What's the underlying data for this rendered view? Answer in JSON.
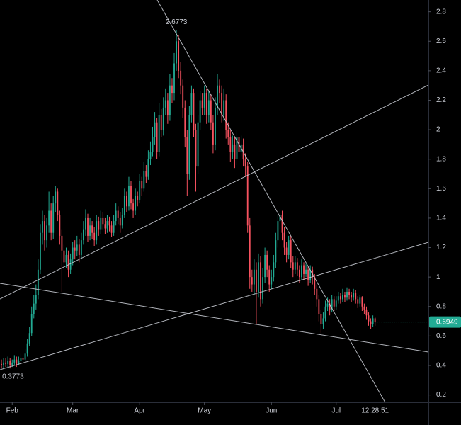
{
  "chart_data": {
    "type": "candlestick",
    "up_color": "#22ab94",
    "down_color": "#f7525f",
    "last_price_color": "#22ab94",
    "xlim": [
      -0.66,
      197.7
    ],
    "ylim": [
      0.15,
      2.88
    ],
    "yticks": [
      0.2,
      0.4,
      0.6,
      0.8,
      1,
      1.2,
      1.4,
      1.6,
      1.8,
      2,
      2.2,
      2.4,
      2.6,
      2.8
    ],
    "xticks": [
      {
        "value": 5,
        "label": "Feb"
      },
      {
        "value": 33,
        "label": "Mar"
      },
      {
        "value": 64,
        "label": "Apr"
      },
      {
        "value": 94,
        "label": "May"
      },
      {
        "value": 125,
        "label": "Jun"
      },
      {
        "value": 155,
        "label": "Jul"
      }
    ],
    "countdown": "12:28:51",
    "open": [
      0.41,
      0.4,
      0.42,
      0.41,
      0.43,
      0.4,
      0.42,
      0.44,
      0.41,
      0.43,
      0.45,
      0.44,
      0.48,
      0.55,
      0.62,
      0.75,
      0.82,
      0.88,
      1.05,
      1.3,
      1.38,
      1.25,
      1.35,
      1.45,
      1.3,
      1.5,
      1.58,
      1.42,
      1.28,
      1.18,
      1.1,
      1.15,
      1.05,
      1.12,
      1.2,
      1.18,
      1.22,
      1.15,
      1.25,
      1.32,
      1.4,
      1.28,
      1.35,
      1.3,
      1.25,
      1.38,
      1.32,
      1.4,
      1.36,
      1.33,
      1.38,
      1.35,
      1.3,
      1.38,
      1.45,
      1.4,
      1.35,
      1.42,
      1.55,
      1.48,
      1.62,
      1.5,
      1.45,
      1.55,
      1.52,
      1.65,
      1.6,
      1.72,
      1.68,
      1.8,
      1.85,
      1.95,
      2.05,
      1.85,
      2.1,
      2.0,
      2.15,
      2.2,
      2.1,
      2.3,
      2.25,
      2.45,
      2.6,
      2.4,
      2.3,
      2.15,
      1.95,
      1.7,
      2.1,
      2.25,
      2.0,
      1.75,
      2.05,
      2.2,
      2.15,
      2.25,
      2.1,
      2.2,
      2.05,
      1.9,
      2.15,
      2.3,
      2.25,
      2.1,
      2.2,
      2.0,
      1.95,
      1.85,
      1.9,
      1.8,
      1.95,
      1.85,
      1.9,
      1.8,
      1.75,
      1.35,
      1.0,
      0.95,
      1.05,
      0.9,
      1.1,
      0.85,
      1.0,
      1.15,
      1.05,
      0.95,
      1.0,
      1.1,
      1.25,
      1.38,
      1.42,
      1.3,
      1.2,
      1.15,
      1.25,
      1.1,
      1.05,
      1.1,
      1.05,
      1.0,
      1.08,
      1.02,
      1.05,
      0.98,
      1.05,
      1.0,
      0.92,
      0.85,
      0.75,
      0.68,
      0.72,
      0.8,
      0.82,
      0.78,
      0.85,
      0.8,
      0.84,
      0.87,
      0.85,
      0.88,
      0.86,
      0.9,
      0.88,
      0.86,
      0.89,
      0.85,
      0.82,
      0.86,
      0.8,
      0.78,
      0.74,
      0.7,
      0.68,
      0.72
    ],
    "high": [
      0.44,
      0.45,
      0.45,
      0.46,
      0.45,
      0.44,
      0.47,
      0.46,
      0.46,
      0.48,
      0.47,
      0.51,
      0.58,
      0.66,
      0.8,
      0.88,
      0.95,
      1.12,
      1.36,
      1.45,
      1.42,
      1.4,
      1.58,
      1.5,
      1.55,
      1.62,
      1.6,
      1.45,
      1.32,
      1.22,
      1.2,
      1.18,
      1.16,
      1.24,
      1.25,
      1.28,
      1.26,
      1.3,
      1.38,
      1.46,
      1.43,
      1.4,
      1.38,
      1.34,
      1.42,
      1.41,
      1.45,
      1.44,
      1.4,
      1.42,
      1.41,
      1.38,
      1.42,
      1.5,
      1.48,
      1.44,
      1.47,
      1.6,
      1.58,
      1.68,
      1.65,
      1.53,
      1.6,
      1.58,
      1.7,
      1.68,
      1.78,
      1.76,
      1.86,
      1.92,
      2.02,
      2.12,
      2.08,
      2.18,
      2.14,
      2.22,
      2.28,
      2.25,
      2.38,
      2.35,
      2.52,
      2.6773,
      2.64,
      2.46,
      2.34,
      2.2,
      2.0,
      2.16,
      2.3,
      2.28,
      2.04,
      2.1,
      2.26,
      2.25,
      2.3,
      2.28,
      2.26,
      2.24,
      2.1,
      2.22,
      2.38,
      2.34,
      2.3,
      2.28,
      2.24,
      2.05,
      2.0,
      1.96,
      1.95,
      2.0,
      1.98,
      1.96,
      1.94,
      1.84,
      1.78,
      1.4,
      1.05,
      1.12,
      1.1,
      1.16,
      1.14,
      1.06,
      1.2,
      1.18,
      1.08,
      1.05,
      1.15,
      1.3,
      1.42,
      1.46,
      1.45,
      1.34,
      1.24,
      1.28,
      1.28,
      1.14,
      1.14,
      1.13,
      1.08,
      1.12,
      1.1,
      1.09,
      1.07,
      1.08,
      1.07,
      1.02,
      0.95,
      0.88,
      0.78,
      0.76,
      0.84,
      0.86,
      0.85,
      0.88,
      0.87,
      0.87,
      0.9,
      0.89,
      0.92,
      0.9,
      0.93,
      0.92,
      0.9,
      0.92,
      0.91,
      0.87,
      0.88,
      0.87,
      0.82,
      0.8,
      0.76,
      0.72,
      0.74,
      0.73
    ],
    "low": [
      0.38,
      0.3773,
      0.39,
      0.39,
      0.38,
      0.39,
      0.4,
      0.39,
      0.4,
      0.42,
      0.41,
      0.43,
      0.46,
      0.53,
      0.6,
      0.72,
      0.78,
      0.85,
      1.02,
      1.22,
      1.18,
      1.2,
      1.3,
      1.25,
      1.26,
      1.44,
      1.38,
      1.22,
      0.9,
      1.05,
      1.06,
      1.0,
      1.02,
      1.08,
      1.12,
      1.14,
      1.1,
      1.12,
      1.22,
      1.28,
      1.24,
      1.25,
      1.26,
      1.21,
      1.22,
      1.28,
      1.29,
      1.32,
      1.29,
      1.3,
      1.31,
      1.27,
      1.28,
      1.35,
      1.36,
      1.3,
      1.33,
      1.4,
      1.44,
      1.45,
      1.46,
      1.4,
      1.42,
      1.48,
      1.5,
      1.55,
      1.58,
      1.64,
      1.66,
      1.76,
      1.82,
      1.9,
      1.8,
      1.82,
      1.95,
      1.96,
      2.1,
      2.04,
      2.06,
      2.18,
      2.2,
      2.4,
      2.35,
      2.24,
      2.08,
      1.88,
      1.55,
      1.66,
      2.05,
      1.95,
      1.58,
      1.7,
      2.0,
      2.1,
      2.1,
      2.04,
      2.05,
      2.0,
      1.84,
      1.86,
      2.1,
      2.18,
      2.05,
      2.06,
      1.94,
      1.9,
      1.78,
      1.8,
      1.74,
      1.76,
      1.8,
      1.82,
      1.75,
      1.68,
      1.3,
      0.92,
      0.9,
      0.88,
      0.68,
      0.86,
      0.8,
      0.82,
      0.96,
      1.0,
      0.9,
      0.92,
      0.97,
      1.06,
      1.2,
      1.32,
      1.25,
      1.15,
      1.1,
      1.12,
      1.06,
      1.0,
      1.02,
      1.01,
      0.96,
      0.98,
      0.98,
      1.0,
      0.94,
      0.96,
      0.95,
      0.88,
      0.8,
      0.7,
      0.62,
      0.65,
      0.7,
      0.77,
      0.74,
      0.76,
      0.77,
      0.78,
      0.82,
      0.82,
      0.83,
      0.83,
      0.84,
      0.85,
      0.83,
      0.84,
      0.82,
      0.79,
      0.8,
      0.77,
      0.75,
      0.71,
      0.67,
      0.65,
      0.66,
      0.67
    ],
    "close": [
      0.4,
      0.42,
      0.41,
      0.43,
      0.4,
      0.42,
      0.44,
      0.41,
      0.43,
      0.45,
      0.44,
      0.48,
      0.55,
      0.62,
      0.75,
      0.82,
      0.88,
      1.05,
      1.3,
      1.38,
      1.25,
      1.35,
      1.45,
      1.3,
      1.5,
      1.58,
      1.42,
      1.28,
      1.18,
      1.1,
      1.15,
      1.05,
      1.12,
      1.2,
      1.18,
      1.22,
      1.15,
      1.25,
      1.32,
      1.4,
      1.28,
      1.35,
      1.3,
      1.25,
      1.38,
      1.32,
      1.4,
      1.36,
      1.33,
      1.38,
      1.35,
      1.3,
      1.38,
      1.45,
      1.4,
      1.35,
      1.42,
      1.55,
      1.48,
      1.62,
      1.5,
      1.45,
      1.55,
      1.52,
      1.65,
      1.6,
      1.72,
      1.68,
      1.8,
      1.85,
      1.95,
      2.05,
      1.85,
      2.1,
      2.0,
      2.15,
      2.2,
      2.1,
      2.3,
      2.25,
      2.45,
      2.6,
      2.4,
      2.3,
      2.15,
      1.95,
      1.7,
      2.1,
      2.25,
      2.0,
      1.75,
      2.05,
      2.2,
      2.15,
      2.25,
      2.1,
      2.2,
      2.05,
      1.9,
      2.15,
      2.3,
      2.25,
      2.1,
      2.2,
      2.0,
      1.95,
      1.85,
      1.9,
      1.8,
      1.95,
      1.85,
      1.9,
      1.8,
      1.75,
      1.35,
      1.0,
      0.95,
      1.05,
      0.9,
      1.1,
      0.85,
      1.0,
      1.15,
      1.05,
      0.95,
      1.0,
      1.1,
      1.25,
      1.38,
      1.42,
      1.3,
      1.2,
      1.15,
      1.25,
      1.1,
      1.05,
      1.1,
      1.05,
      1.0,
      1.08,
      1.02,
      1.05,
      0.98,
      1.05,
      1.0,
      0.92,
      0.85,
      0.75,
      0.68,
      0.72,
      0.8,
      0.82,
      0.78,
      0.85,
      0.8,
      0.84,
      0.87,
      0.85,
      0.88,
      0.86,
      0.9,
      0.88,
      0.86,
      0.89,
      0.85,
      0.82,
      0.86,
      0.8,
      0.78,
      0.74,
      0.7,
      0.68,
      0.72,
      0.6949
    ]
  }
}
